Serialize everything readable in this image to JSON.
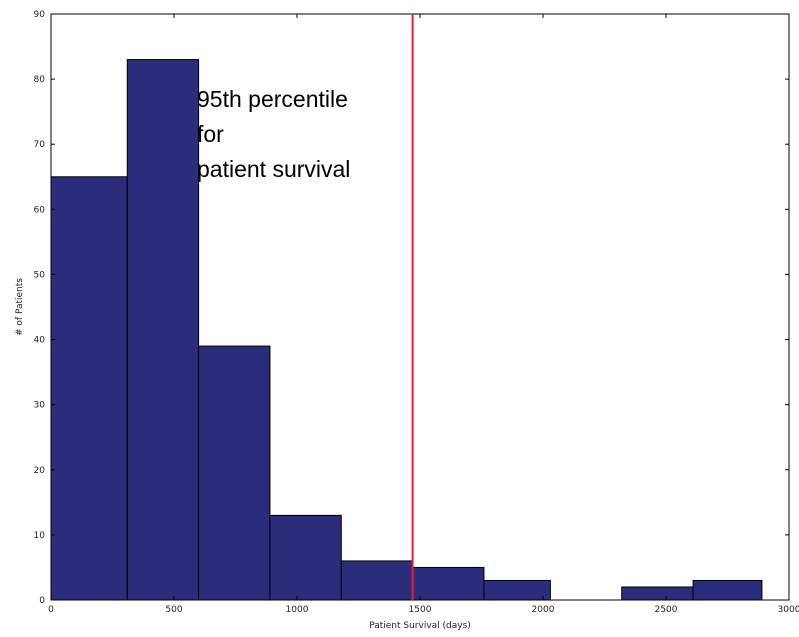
{
  "chart_data": {
    "type": "bar",
    "subtype": "histogram",
    "bins": [
      {
        "x0": 0,
        "x1": 310,
        "value": 65
      },
      {
        "x0": 310,
        "x1": 600,
        "value": 83
      },
      {
        "x0": 600,
        "x1": 890,
        "value": 39
      },
      {
        "x0": 890,
        "x1": 1180,
        "value": 13
      },
      {
        "x0": 1180,
        "x1": 1470,
        "value": 6
      },
      {
        "x0": 1470,
        "x1": 1760,
        "value": 5
      },
      {
        "x0": 1760,
        "x1": 2030,
        "value": 3
      },
      {
        "x0": 2030,
        "x1": 2320,
        "value": 0
      },
      {
        "x0": 2320,
        "x1": 2610,
        "value": 2
      },
      {
        "x0": 2610,
        "x1": 2890,
        "value": 3
      }
    ],
    "xlabel": "Patient Survival (days)",
    "ylabel": "# of Patients",
    "xlim": [
      0,
      3000
    ],
    "ylim": [
      0,
      90
    ],
    "xticks": [
      0,
      500,
      1000,
      1500,
      2000,
      2500,
      3000
    ],
    "yticks": [
      0,
      10,
      20,
      30,
      40,
      50,
      60,
      70,
      80,
      90
    ],
    "reference_line": {
      "x": 1470,
      "color": "#e8202a"
    },
    "annotation": {
      "lines": [
        "95th percentile",
        "for",
        "patient survival"
      ]
    },
    "bar_color": "#2b2d7c",
    "grid": false
  }
}
